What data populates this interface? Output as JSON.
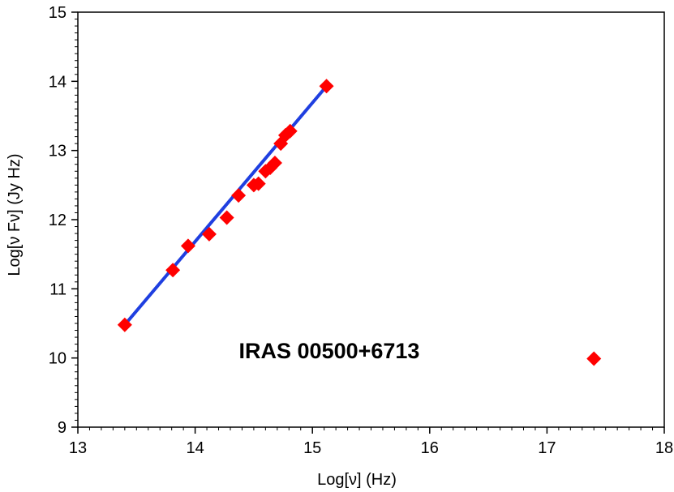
{
  "chart_data": {
    "type": "scatter",
    "xlabel": "Log[ν]  (Hz)",
    "ylabel": "Log[ν Fν] (Jy Hz)",
    "xlim": [
      13,
      18
    ],
    "ylim": [
      9,
      15
    ],
    "x_ticks": [
      "13",
      "14",
      "15",
      "16",
      "17",
      "18"
    ],
    "y_ticks": [
      "9",
      "10",
      "11",
      "12",
      "13",
      "14",
      "15"
    ],
    "annotation": "IRAS 00500+6713",
    "grid": false,
    "series": [
      {
        "values": [
          [
            13.4,
            10.48
          ],
          [
            13.81,
            11.27
          ],
          [
            13.94,
            11.62
          ],
          [
            14.12,
            11.79
          ],
          [
            14.27,
            12.03
          ],
          [
            14.37,
            12.35
          ],
          [
            14.5,
            12.5
          ],
          [
            14.54,
            12.52
          ],
          [
            14.6,
            12.7
          ],
          [
            14.64,
            12.75
          ],
          [
            14.68,
            12.82
          ],
          [
            14.73,
            13.1
          ],
          [
            14.77,
            13.22
          ],
          [
            14.81,
            13.28
          ],
          [
            15.12,
            13.93
          ],
          [
            17.4,
            9.99
          ]
        ],
        "color": "#ff0000",
        "marker": "diamond"
      }
    ],
    "fit_line": {
      "x": [
        13.4,
        15.12
      ],
      "y": [
        10.48,
        13.93
      ],
      "color": "#1f3fe0"
    }
  }
}
